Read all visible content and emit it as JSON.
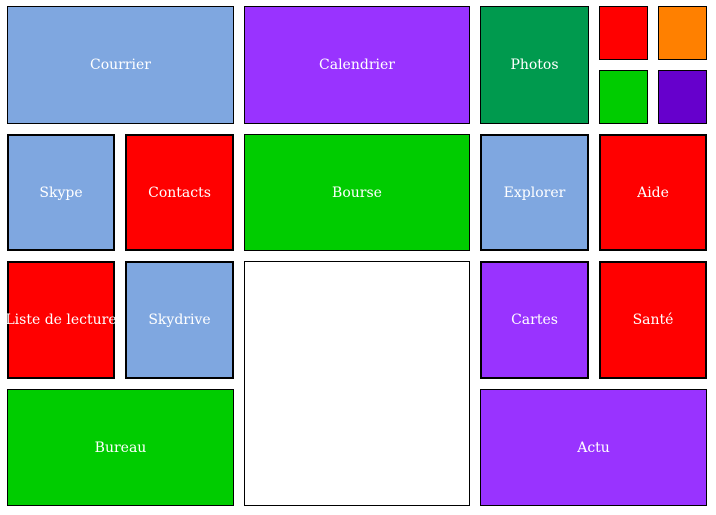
{
  "colors": {
    "light_blue": "#7fa7e0",
    "purple": "#9933ff",
    "teal_green": "#009a4e",
    "red": "#ff0000",
    "orange": "#ff8000",
    "green": "#00cc00",
    "dark_purple": "#6600cc",
    "white": "#ffffff"
  },
  "tiles": {
    "courrier": "Courrier",
    "calendrier": "Calendrier",
    "photos": "Photos",
    "skype": "Skype",
    "contacts": "Contacts",
    "bourse": "Bourse",
    "explorer": "Explorer",
    "aide": "Aide",
    "liste_lecture": "Liste de lecture",
    "skydrive": "Skydrive",
    "cartes": "Cartes",
    "sante": "Santé",
    "bureau": "Bureau",
    "actu": "Actu"
  }
}
